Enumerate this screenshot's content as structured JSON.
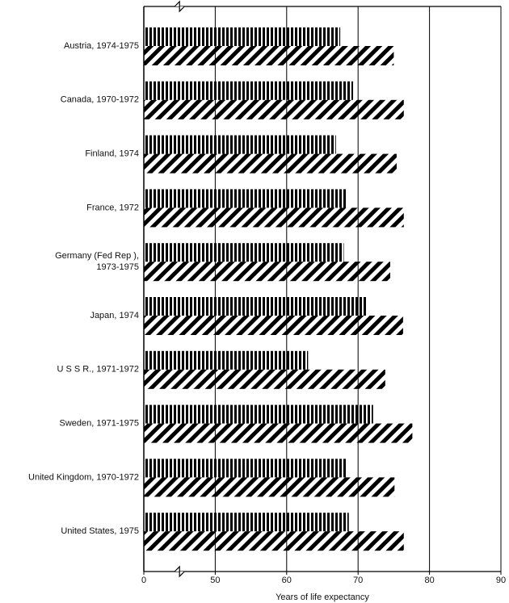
{
  "chart_data": {
    "type": "bar",
    "orientation": "horizontal",
    "x_label": "Years of life expectancy",
    "categories": [
      "Austria, 1974-1975",
      "Canada, 1970-1972",
      "Finland, 1974",
      "France, 1972",
      "Germany (Fed Rep ),\n1973-1975",
      "Japan, 1974",
      "U S S R., 1971-1972",
      "Sweden, 1971-1975",
      "United Kingdom, 1970-1972",
      "United States, 1975"
    ],
    "series": [
      {
        "color": "#000000",
        "pattern": "vertical",
        "values": [
          67.5,
          69.3,
          66.9,
          68.5,
          68.0,
          71.3,
          63.0,
          72.1,
          68.5,
          68.7
        ]
      },
      {
        "color": "#000000",
        "pattern": "diagonal",
        "values": [
          75.0,
          76.4,
          75.4,
          76.4,
          74.5,
          76.3,
          73.8,
          77.6,
          75.1,
          76.4
        ]
      }
    ],
    "xlim": [
      0,
      90
    ],
    "xticks": [
      0,
      50,
      60,
      70,
      80,
      90
    ],
    "axis_break": true,
    "grid": true
  }
}
